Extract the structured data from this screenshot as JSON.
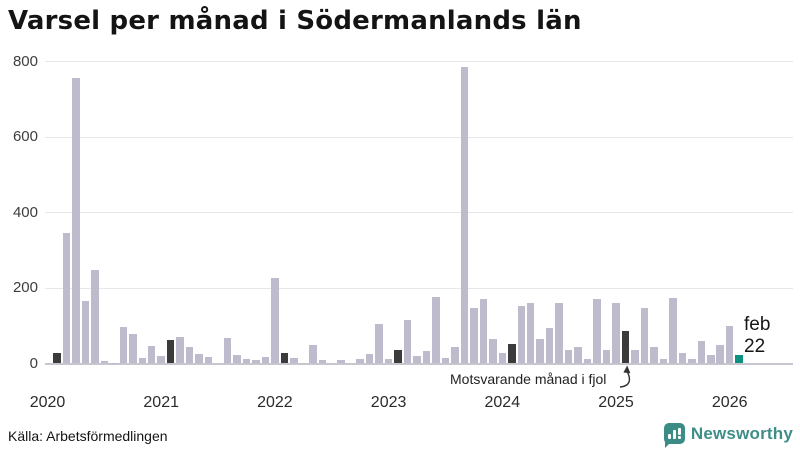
{
  "title": "Varsel per månad i Södermanlands län",
  "source": "Källa: Arbetsförmedlingen",
  "brand": {
    "name": "Newsworthy"
  },
  "annotation": {
    "text": "Motsvarande månad i fjol"
  },
  "latest_label": {
    "line1": "feb",
    "line2": "22"
  },
  "colors": {
    "bar_light": "#bebbcd",
    "bar_last_year_month": "#3b3b3b",
    "bar_current": "#0a9180",
    "gridline": "#e7e6eb",
    "axis_line": "#c7c6ce",
    "brand_teal": "#3a8c85"
  },
  "chart_data": {
    "type": "bar",
    "title": "Varsel per månad i Södermanlands län",
    "xlabel": "",
    "ylabel": "",
    "ylim": [
      0,
      800
    ],
    "yticks": [
      0,
      200,
      400,
      600,
      800
    ],
    "year_ticks": [
      2020,
      2021,
      2022,
      2023,
      2024,
      2025,
      2026
    ],
    "grid": true,
    "legend": "none",
    "highlight_rules": {
      "dark": "february of each year (motsvarande månad i fjol)",
      "teal": "2026-02 (feb 22, latest month)"
    },
    "months": [
      {
        "ym": "2020-02",
        "v": 28,
        "k": "dark"
      },
      {
        "ym": "2020-03",
        "v": 345,
        "k": "light"
      },
      {
        "ym": "2020-04",
        "v": 755,
        "k": "light"
      },
      {
        "ym": "2020-05",
        "v": 165,
        "k": "light"
      },
      {
        "ym": "2020-06",
        "v": 247,
        "k": "light"
      },
      {
        "ym": "2020-07",
        "v": 6,
        "k": "light"
      },
      {
        "ym": "2020-08",
        "v": 2,
        "k": "light"
      },
      {
        "ym": "2020-09",
        "v": 97,
        "k": "light"
      },
      {
        "ym": "2020-10",
        "v": 77,
        "k": "light"
      },
      {
        "ym": "2020-11",
        "v": 15,
        "k": "light"
      },
      {
        "ym": "2020-12",
        "v": 46,
        "k": "light"
      },
      {
        "ym": "2021-01",
        "v": 21,
        "k": "light"
      },
      {
        "ym": "2021-02",
        "v": 63,
        "k": "dark"
      },
      {
        "ym": "2021-03",
        "v": 69,
        "k": "light"
      },
      {
        "ym": "2021-04",
        "v": 44,
        "k": "light"
      },
      {
        "ym": "2021-05",
        "v": 26,
        "k": "light"
      },
      {
        "ym": "2021-06",
        "v": 16,
        "k": "light"
      },
      {
        "ym": "2021-07",
        "v": 0,
        "k": "light"
      },
      {
        "ym": "2021-08",
        "v": 68,
        "k": "light"
      },
      {
        "ym": "2021-09",
        "v": 22,
        "k": "light"
      },
      {
        "ym": "2021-10",
        "v": 11,
        "k": "light"
      },
      {
        "ym": "2021-11",
        "v": 9,
        "k": "light"
      },
      {
        "ym": "2021-12",
        "v": 16,
        "k": "light"
      },
      {
        "ym": "2022-01",
        "v": 227,
        "k": "light"
      },
      {
        "ym": "2022-02",
        "v": 28,
        "k": "dark"
      },
      {
        "ym": "2022-03",
        "v": 14,
        "k": "light"
      },
      {
        "ym": "2022-04",
        "v": 0,
        "k": "light"
      },
      {
        "ym": "2022-05",
        "v": 48,
        "k": "light"
      },
      {
        "ym": "2022-06",
        "v": 8,
        "k": "light"
      },
      {
        "ym": "2022-07",
        "v": 0,
        "k": "light"
      },
      {
        "ym": "2022-08",
        "v": 9,
        "k": "light"
      },
      {
        "ym": "2022-09",
        "v": 0,
        "k": "light"
      },
      {
        "ym": "2022-10",
        "v": 11,
        "k": "light"
      },
      {
        "ym": "2022-11",
        "v": 26,
        "k": "light"
      },
      {
        "ym": "2022-12",
        "v": 104,
        "k": "light"
      },
      {
        "ym": "2023-01",
        "v": 11,
        "k": "light"
      },
      {
        "ym": "2023-02",
        "v": 35,
        "k": "dark"
      },
      {
        "ym": "2023-03",
        "v": 115,
        "k": "light"
      },
      {
        "ym": "2023-04",
        "v": 20,
        "k": "light"
      },
      {
        "ym": "2023-05",
        "v": 33,
        "k": "light"
      },
      {
        "ym": "2023-06",
        "v": 176,
        "k": "light"
      },
      {
        "ym": "2023-07",
        "v": 14,
        "k": "light"
      },
      {
        "ym": "2023-08",
        "v": 43,
        "k": "light"
      },
      {
        "ym": "2023-09",
        "v": 785,
        "k": "light"
      },
      {
        "ym": "2023-10",
        "v": 148,
        "k": "light"
      },
      {
        "ym": "2023-11",
        "v": 171,
        "k": "light"
      },
      {
        "ym": "2023-12",
        "v": 65,
        "k": "light"
      },
      {
        "ym": "2024-01",
        "v": 28,
        "k": "light"
      },
      {
        "ym": "2024-02",
        "v": 51,
        "k": "dark"
      },
      {
        "ym": "2024-03",
        "v": 153,
        "k": "light"
      },
      {
        "ym": "2024-04",
        "v": 160,
        "k": "light"
      },
      {
        "ym": "2024-05",
        "v": 65,
        "k": "light"
      },
      {
        "ym": "2024-06",
        "v": 94,
        "k": "light"
      },
      {
        "ym": "2024-07",
        "v": 160,
        "k": "light"
      },
      {
        "ym": "2024-08",
        "v": 36,
        "k": "light"
      },
      {
        "ym": "2024-09",
        "v": 45,
        "k": "light"
      },
      {
        "ym": "2024-10",
        "v": 11,
        "k": "light"
      },
      {
        "ym": "2024-11",
        "v": 172,
        "k": "light"
      },
      {
        "ym": "2024-12",
        "v": 35,
        "k": "light"
      },
      {
        "ym": "2025-01",
        "v": 161,
        "k": "light"
      },
      {
        "ym": "2025-02",
        "v": 87,
        "k": "dark"
      },
      {
        "ym": "2025-03",
        "v": 37,
        "k": "light"
      },
      {
        "ym": "2025-04",
        "v": 146,
        "k": "light"
      },
      {
        "ym": "2025-05",
        "v": 43,
        "k": "light"
      },
      {
        "ym": "2025-06",
        "v": 11,
        "k": "light"
      },
      {
        "ym": "2025-07",
        "v": 174,
        "k": "light"
      },
      {
        "ym": "2025-08",
        "v": 28,
        "k": "light"
      },
      {
        "ym": "2025-09",
        "v": 13,
        "k": "light"
      },
      {
        "ym": "2025-10",
        "v": 59,
        "k": "light"
      },
      {
        "ym": "2025-11",
        "v": 22,
        "k": "light"
      },
      {
        "ym": "2025-12",
        "v": 50,
        "k": "light"
      },
      {
        "ym": "2026-01",
        "v": 99,
        "k": "light"
      },
      {
        "ym": "2026-02",
        "v": 22,
        "k": "teal"
      }
    ]
  }
}
